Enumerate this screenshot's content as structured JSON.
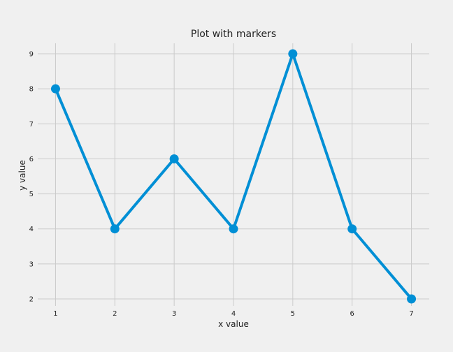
{
  "chart_data": {
    "type": "line",
    "title": "Plot with markers",
    "xlabel": "x value",
    "ylabel": "y value",
    "x": [
      1,
      2,
      3,
      4,
      5,
      6,
      7
    ],
    "series": [
      {
        "name": "",
        "values": [
          8,
          4,
          6,
          4,
          9,
          4,
          2
        ]
      }
    ],
    "xlim": [
      0.7,
      7.3
    ],
    "ylim": [
      1.8,
      9.3
    ],
    "xticks": [
      "1",
      "2",
      "3",
      "4",
      "5",
      "6",
      "7"
    ],
    "yticks": [
      "2",
      "3",
      "4",
      "5",
      "6",
      "7",
      "8",
      "9"
    ],
    "grid": true,
    "marker": "circle",
    "colors": {
      "line": "#008fd5",
      "grid": "#cbcbcb",
      "background": "#f0f0f0"
    }
  }
}
